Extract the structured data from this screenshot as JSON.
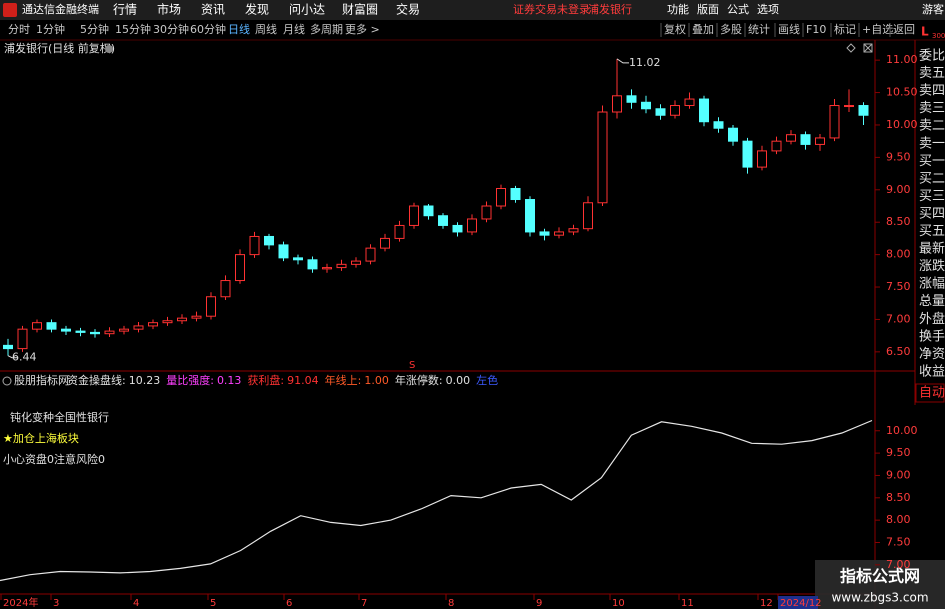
{
  "titlebar": {
    "app": "通达信金融终端",
    "menus": [
      "行情",
      "市场",
      "资讯",
      "发现",
      "问小达",
      "财富圈",
      "交易"
    ],
    "status": "证券交易未登录",
    "stock": "浦发银行",
    "right_menus": [
      "功能",
      "版面",
      "公式",
      "选项"
    ],
    "user": "游客"
  },
  "toolbar": {
    "periods": [
      "分时",
      "1分钟",
      "5分钟",
      "15分钟",
      "30分钟",
      "60分钟",
      "日线",
      "周线",
      "月线",
      "多周期",
      "更多 >"
    ],
    "active_period": 6,
    "buttons": [
      "复权",
      "叠加",
      "多股",
      "统计",
      "画线",
      "F10",
      "标记",
      "+自选",
      "返回"
    ]
  },
  "side": {
    "top": "L",
    "top_sub": "300",
    "items": [
      "委比",
      "卖五",
      "卖四",
      "卖三",
      "卖二",
      "卖一",
      "买一",
      "买二",
      "买三",
      "买四",
      "买五",
      "最新",
      "涨跌",
      "涨幅",
      "总量",
      "外盘",
      "换手",
      "净资",
      "收益"
    ],
    "auto": "自动"
  },
  "chart_data": [
    {
      "type": "candlestick",
      "title": "浦发银行(日线 前复权)",
      "open": [
        6.6,
        6.55,
        6.85,
        6.95,
        6.85,
        6.82,
        6.8,
        6.78,
        6.82,
        6.85,
        6.9,
        6.95,
        6.98,
        7.02,
        7.05,
        7.35,
        7.6,
        8.0,
        8.28,
        8.15,
        7.95,
        7.92,
        7.78,
        7.8,
        7.85,
        7.9,
        8.1,
        8.25,
        8.45,
        8.75,
        8.6,
        8.45,
        8.35,
        8.55,
        8.75,
        9.02,
        8.85,
        8.35,
        8.3,
        8.35,
        8.4,
        8.8,
        10.2,
        10.45,
        10.35,
        10.25,
        10.15,
        10.3,
        10.4,
        10.05,
        9.95,
        9.75,
        9.35,
        9.6,
        9.75,
        9.85,
        9.7,
        9.8,
        10.3,
        10.3
      ],
      "high": [
        6.7,
        6.9,
        7.0,
        7.0,
        6.9,
        6.87,
        6.85,
        6.88,
        6.9,
        6.96,
        7.0,
        7.04,
        7.08,
        7.12,
        7.42,
        7.68,
        8.08,
        8.35,
        8.32,
        8.2,
        8.0,
        7.97,
        7.86,
        7.92,
        7.96,
        8.16,
        8.32,
        8.52,
        8.8,
        8.78,
        8.64,
        8.5,
        8.62,
        8.82,
        9.08,
        9.06,
        8.9,
        8.4,
        8.42,
        8.46,
        8.9,
        10.3,
        11.02,
        10.55,
        10.45,
        10.32,
        10.38,
        10.5,
        10.45,
        10.12,
        10.0,
        9.8,
        9.68,
        9.82,
        9.92,
        9.9,
        9.86,
        10.4,
        10.55,
        10.35
      ],
      "low": [
        6.44,
        6.5,
        6.8,
        6.8,
        6.76,
        6.74,
        6.72,
        6.73,
        6.77,
        6.8,
        6.85,
        6.9,
        6.93,
        6.97,
        7.0,
        7.3,
        7.55,
        7.95,
        8.08,
        7.9,
        7.85,
        7.72,
        7.72,
        7.75,
        7.8,
        7.85,
        8.05,
        8.2,
        8.4,
        8.54,
        8.4,
        8.28,
        8.3,
        8.5,
        8.7,
        8.8,
        8.28,
        8.22,
        8.25,
        8.3,
        8.36,
        8.75,
        10.1,
        10.25,
        10.18,
        10.08,
        10.1,
        10.25,
        9.98,
        9.88,
        9.68,
        9.25,
        9.3,
        9.55,
        9.7,
        9.62,
        9.6,
        9.75,
        10.2,
        10.0
      ],
      "close": [
        6.55,
        6.85,
        6.95,
        6.85,
        6.82,
        6.8,
        6.78,
        6.82,
        6.85,
        6.9,
        6.95,
        6.98,
        7.02,
        7.05,
        7.35,
        7.6,
        8.0,
        8.28,
        8.15,
        7.95,
        7.92,
        7.78,
        7.8,
        7.85,
        7.9,
        8.1,
        8.25,
        8.45,
        8.75,
        8.6,
        8.45,
        8.35,
        8.55,
        8.75,
        9.02,
        8.85,
        8.35,
        8.3,
        8.35,
        8.4,
        8.8,
        10.2,
        10.45,
        10.35,
        10.25,
        10.15,
        10.3,
        10.4,
        10.05,
        9.95,
        9.75,
        9.35,
        9.6,
        9.75,
        9.85,
        9.7,
        9.8,
        10.3,
        10.3,
        10.15
      ],
      "up_color": "#ff3232",
      "down_color": "#54ffff",
      "ylim": [
        6.22,
        11.28
      ],
      "yticks": [
        {
          "value": 6.5,
          "label": "6.50"
        },
        {
          "value": 7,
          "label": "7.00"
        },
        {
          "value": 7.5,
          "label": "7.50"
        },
        {
          "value": 8,
          "label": "8.00"
        },
        {
          "value": 8.5,
          "label": "8.50"
        },
        {
          "value": 9,
          "label": "9.00"
        },
        {
          "value": 9.5,
          "label": "9.50"
        },
        {
          "value": 10,
          "label": "10.00"
        },
        {
          "value": 10.5,
          "label": "10.50"
        },
        {
          "value": 11,
          "label": "11.00"
        }
      ],
      "max_label": "11.02",
      "min_label": "6.44",
      "signal": "S"
    },
    {
      "type": "line",
      "source": "股朋指标网",
      "header": [
        {
          "name": "资金操盘线:",
          "value": 10.23,
          "color": "#e0e0e0"
        },
        {
          "name": "量比强度:",
          "value": 0.13,
          "color": "#ff40ff"
        },
        {
          "name": "获利盘:",
          "value": 91.04,
          "color": "#ff3232"
        },
        {
          "name": "年线上:",
          "value": {
            "value": 1,
            "label": "1.00"
          },
          "color": "#ff5a28"
        },
        {
          "name": "年涨停数:",
          "value": {
            "value": 0,
            "label": "0.00"
          },
          "color": "#e0e0e0"
        }
      ],
      "tag": "左色",
      "notes": [
        "钝化变种全国性银行",
        "★加仓上海板块",
        "小心资盘0注意风险0"
      ],
      "series": [
        {
          "name": "资金操盘线",
          "color": "#e6e6e6",
          "values": [
            6.65,
            6.78,
            6.85,
            6.84,
            6.82,
            6.85,
            6.92,
            7.02,
            7.32,
            7.75,
            8.1,
            7.95,
            7.88,
            8.0,
            8.25,
            8.55,
            8.5,
            8.72,
            8.8,
            8.45,
            8.95,
            9.9,
            10.2,
            10.1,
            9.95,
            9.72,
            9.7,
            9.78,
            9.95,
            10.23
          ]
        }
      ],
      "ylim": [
        6.37,
        10.8
      ],
      "yticks": [
        {
          "value": 7,
          "label": "7.00"
        },
        {
          "value": 7.5,
          "label": "7.50"
        },
        {
          "value": 8,
          "label": "8.00"
        },
        {
          "value": 8.5,
          "label": "8.50"
        },
        {
          "value": 9,
          "label": "9.00"
        },
        {
          "value": 9.5,
          "label": "9.50"
        },
        {
          "value": 10,
          "label": "10.00"
        }
      ]
    }
  ],
  "x_axis": {
    "labels": [
      "2024年",
      "3",
      "4",
      "5",
      "6",
      "7",
      "8",
      "9",
      "10",
      "11",
      "12",
      "2024/12"
    ]
  },
  "watermark": {
    "title": "指标公式网",
    "url": "www.zbgs3.com"
  }
}
